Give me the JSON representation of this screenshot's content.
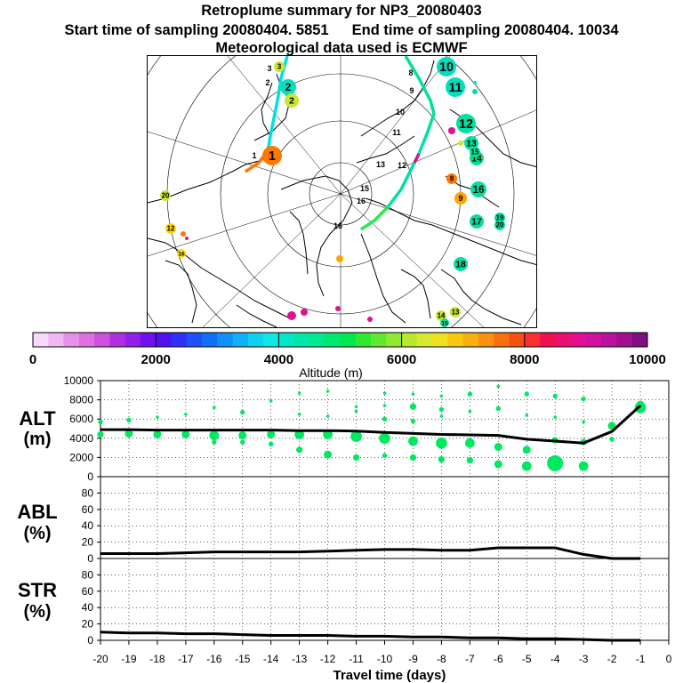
{
  "header": {
    "title": "Retroplume summary for NP3_20080403",
    "start_label": "Start time of sampling 20080404.  5851",
    "end_label": "End time of sampling 20080404. 10034",
    "met_label": "Meteorological data used is ECMWF"
  },
  "map": {
    "plume_labels": [
      {
        "text": "3",
        "color": "#c8e632"
      },
      {
        "text": "2",
        "color": "#00e0c0"
      },
      {
        "text": "2",
        "color": "#c8e632"
      },
      {
        "text": "1",
        "color": "#ff7800"
      },
      {
        "text": "10",
        "color": "#00e0c0"
      },
      {
        "text": "11",
        "color": "#00e0c0"
      },
      {
        "text": "12",
        "color": "#00e0a0"
      },
      {
        "text": "13",
        "color": "#00e0a0"
      },
      {
        "text": "14",
        "color": "#00e090"
      },
      {
        "text": "15",
        "color": "#00e090"
      },
      {
        "text": "16",
        "color": "#00e0a0"
      },
      {
        "text": "17",
        "color": "#00e0a0"
      },
      {
        "text": "18",
        "color": "#00e0a0"
      },
      {
        "text": "19",
        "color": "#00e0a0"
      },
      {
        "text": "20",
        "color": "#00e0a0"
      },
      {
        "text": "9",
        "color": "#ffa500"
      },
      {
        "text": "8",
        "color": "#ff7800"
      },
      {
        "text": "20",
        "color": "#c8e632"
      },
      {
        "text": "12",
        "color": "#ffd700"
      },
      {
        "text": "16",
        "color": "#ffd700"
      },
      {
        "text": "14",
        "color": "#c8e632"
      },
      {
        "text": "13",
        "color": "#c8e632"
      },
      {
        "text": "15",
        "color": "#00e090"
      }
    ],
    "centroid_labels": [
      "8",
      "9",
      "10",
      "11",
      "12",
      "13",
      "15",
      "16",
      "1",
      "2",
      "3",
      "16"
    ]
  },
  "colorbar": {
    "ticks": [
      "0",
      "2000",
      "4000",
      "6000",
      "8000",
      "10000"
    ],
    "label": "Altitude (m)",
    "colors": [
      "#f8d8f8",
      "#f0b8f0",
      "#e890e8",
      "#e070e0",
      "#d050e0",
      "#b030e0",
      "#9020e8",
      "#7010f0",
      "#5010f0",
      "#3030f8",
      "#2050f8",
      "#1070f8",
      "#1090f8",
      "#10b0f8",
      "#10d0f0",
      "#10e8e8",
      "#00e8c8",
      "#00e8a8",
      "#00e890",
      "#00e870",
      "#00e850",
      "#30e830",
      "#60e830",
      "#90e830",
      "#b8e830",
      "#d8e830",
      "#f0e020",
      "#f8c810",
      "#f8b010",
      "#f89010",
      "#f87010",
      "#f85010",
      "#f83030",
      "#f01050",
      "#e81070",
      "#e01090",
      "#d010a0",
      "#b810a0",
      "#a01090",
      "#801080"
    ]
  },
  "axes": {
    "alt_label": "ALT",
    "alt_unit": "(m)",
    "abl_label": "ABL",
    "abl_unit": "(%)",
    "str_label": "STR",
    "str_unit": "(%)",
    "alt_ticks": [
      "0",
      "2000",
      "4000",
      "6000",
      "8000",
      "10000"
    ],
    "pct_ticks": [
      "0",
      "20",
      "40",
      "60",
      "80"
    ],
    "x_ticks": [
      "-20",
      "-19",
      "-18",
      "-17",
      "-16",
      "-15",
      "-14",
      "-13",
      "-12",
      "-11",
      "-10",
      "-9",
      "-8",
      "-7",
      "-6",
      "-5",
      "-4",
      "-3",
      "-2",
      "-1",
      "0"
    ],
    "x_label": "Travel time (days)"
  },
  "chart_data": {
    "type": "line",
    "title": "Retroplume summary for NP3_20080403",
    "xlabel": "Travel time (days)",
    "xlim": [
      -20,
      0
    ],
    "x": [
      -20,
      -19,
      -18,
      -17,
      -16,
      -15,
      -14,
      -13,
      -12,
      -11,
      -10,
      -9,
      -8,
      -7,
      -6,
      -5,
      -4,
      -3,
      -2,
      -1
    ],
    "series": [
      {
        "name": "ALT (m)",
        "ylim": [
          0,
          10000
        ],
        "values": [
          4900,
          4900,
          4850,
          4850,
          4850,
          4850,
          4850,
          4800,
          4800,
          4750,
          4600,
          4500,
          4400,
          4350,
          4300,
          3900,
          3700,
          3500,
          4700,
          7400
        ]
      },
      {
        "name": "ABL (%)",
        "ylim": [
          0,
          100
        ],
        "values": [
          6,
          6,
          6,
          7,
          8,
          8,
          8,
          8,
          9,
          10,
          11,
          11,
          10,
          10,
          13,
          13,
          13,
          5,
          0,
          0
        ]
      },
      {
        "name": "STR (%)",
        "ylim": [
          0,
          100
        ],
        "values": [
          10,
          9,
          9,
          8,
          8,
          7,
          6,
          6,
          6,
          5,
          5,
          4,
          4,
          3,
          3,
          2,
          2,
          1,
          0,
          0
        ]
      }
    ],
    "alt_bubbles": [
      {
        "day": -20,
        "alt": 4400,
        "size": 4
      },
      {
        "day": -20,
        "alt": 5700,
        "size": 3
      },
      {
        "day": -19,
        "alt": 4500,
        "size": 5
      },
      {
        "day": -19,
        "alt": 5900,
        "size": 3
      },
      {
        "day": -18,
        "alt": 4400,
        "size": 5
      },
      {
        "day": -18,
        "alt": 6200,
        "size": 2
      },
      {
        "day": -17,
        "alt": 4400,
        "size": 5
      },
      {
        "day": -17,
        "alt": 6500,
        "size": 2
      },
      {
        "day": -16,
        "alt": 4300,
        "size": 6
      },
      {
        "day": -16,
        "alt": 7200,
        "size": 2
      },
      {
        "day": -16,
        "alt": 3600,
        "size": 3
      },
      {
        "day": -15,
        "alt": 4300,
        "size": 5
      },
      {
        "day": -15,
        "alt": 6700,
        "size": 3
      },
      {
        "day": -15,
        "alt": 3600,
        "size": 3
      },
      {
        "day": -14,
        "alt": 4400,
        "size": 5
      },
      {
        "day": -14,
        "alt": 7900,
        "size": 2
      },
      {
        "day": -14,
        "alt": 3400,
        "size": 3
      },
      {
        "day": -13,
        "alt": 4400,
        "size": 6
      },
      {
        "day": -13,
        "alt": 2800,
        "size": 4
      },
      {
        "day": -13,
        "alt": 6500,
        "size": 2
      },
      {
        "day": -13,
        "alt": 8700,
        "size": 2
      },
      {
        "day": -12,
        "alt": 4400,
        "size": 6
      },
      {
        "day": -12,
        "alt": 2300,
        "size": 5
      },
      {
        "day": -12,
        "alt": 6300,
        "size": 2
      },
      {
        "day": -12,
        "alt": 8900,
        "size": 2
      },
      {
        "day": -11,
        "alt": 4200,
        "size": 7
      },
      {
        "day": -11,
        "alt": 2000,
        "size": 4
      },
      {
        "day": -11,
        "alt": 6800,
        "size": 2
      },
      {
        "day": -11,
        "alt": 7300,
        "size": 2
      },
      {
        "day": -10,
        "alt": 4000,
        "size": 7
      },
      {
        "day": -10,
        "alt": 2200,
        "size": 3
      },
      {
        "day": -10,
        "alt": 6000,
        "size": 3
      },
      {
        "day": -10,
        "alt": 7400,
        "size": 2
      },
      {
        "day": -10,
        "alt": 8700,
        "size": 2
      },
      {
        "day": -9,
        "alt": 3700,
        "size": 6
      },
      {
        "day": -9,
        "alt": 2000,
        "size": 4
      },
      {
        "day": -9,
        "alt": 5800,
        "size": 3
      },
      {
        "day": -9,
        "alt": 7300,
        "size": 4
      },
      {
        "day": -9,
        "alt": 8600,
        "size": 2
      },
      {
        "day": -8,
        "alt": 3500,
        "size": 7
      },
      {
        "day": -8,
        "alt": 1800,
        "size": 4
      },
      {
        "day": -8,
        "alt": 6300,
        "size": 2
      },
      {
        "day": -8,
        "alt": 7000,
        "size": 3
      },
      {
        "day": -8,
        "alt": 8400,
        "size": 2
      },
      {
        "day": -7,
        "alt": 3500,
        "size": 6
      },
      {
        "day": -7,
        "alt": 1700,
        "size": 4
      },
      {
        "day": -7,
        "alt": 6800,
        "size": 2
      },
      {
        "day": -7,
        "alt": 8600,
        "size": 3
      },
      {
        "day": -6,
        "alt": 3100,
        "size": 5
      },
      {
        "day": -6,
        "alt": 1300,
        "size": 5
      },
      {
        "day": -6,
        "alt": 7100,
        "size": 3
      },
      {
        "day": -6,
        "alt": 9400,
        "size": 2
      },
      {
        "day": -5,
        "alt": 2800,
        "size": 5
      },
      {
        "day": -5,
        "alt": 1100,
        "size": 6
      },
      {
        "day": -5,
        "alt": 6400,
        "size": 2
      },
      {
        "day": -5,
        "alt": 8600,
        "size": 3
      },
      {
        "day": -4,
        "alt": 3800,
        "size": 4
      },
      {
        "day": -4,
        "alt": 1400,
        "size": 10
      },
      {
        "day": -4,
        "alt": 6200,
        "size": 2
      },
      {
        "day": -4,
        "alt": 8400,
        "size": 3
      },
      {
        "day": -3,
        "alt": 3600,
        "size": 4
      },
      {
        "day": -3,
        "alt": 1100,
        "size": 6
      },
      {
        "day": -3,
        "alt": 5700,
        "size": 2
      },
      {
        "day": -3,
        "alt": 8100,
        "size": 3
      },
      {
        "day": -2,
        "alt": 5300,
        "size": 5
      },
      {
        "day": -2,
        "alt": 3900,
        "size": 3
      },
      {
        "day": -1,
        "alt": 7200,
        "size": 7
      },
      {
        "day": -1,
        "alt": 7500,
        "size": 5
      }
    ]
  }
}
